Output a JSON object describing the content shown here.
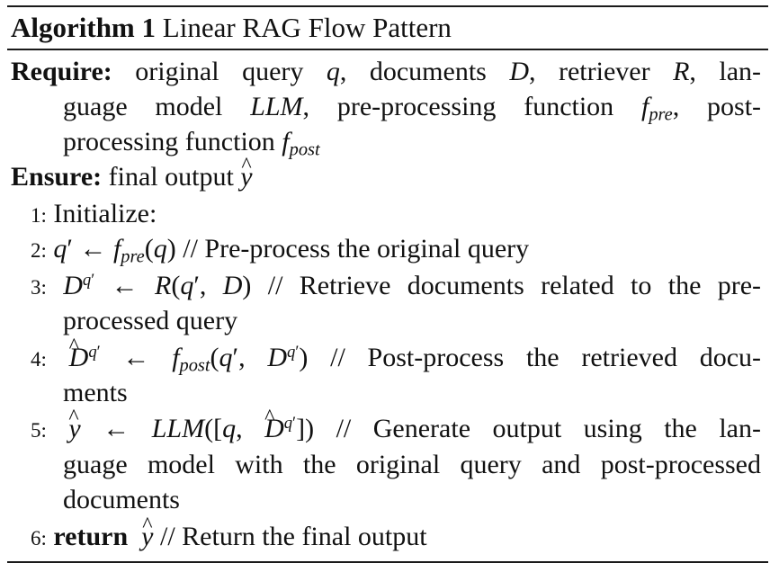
{
  "algorithm": {
    "label": "Algorithm 1",
    "name": "Linear RAG Flow Pattern"
  },
  "require": {
    "keyword": "Require:",
    "line1": {
      "text_a": "original query",
      "q": "q",
      "text_b": ", documents",
      "D": "D",
      "text_c": ", retriever",
      "R": "R",
      "text_d": ", lan-"
    },
    "line2": {
      "text_a": "guage model",
      "llm": "LLM",
      "text_b": ", pre-processing function",
      "f": "f",
      "sub": "pre",
      "text_c": ", post-"
    },
    "line3": {
      "text_a": "processing function",
      "f": "f",
      "sub": "post"
    }
  },
  "ensure": {
    "keyword": "Ensure:",
    "text": "final output",
    "y": "y"
  },
  "steps": [
    {
      "num": "1:",
      "text": "Initialize:"
    },
    {
      "num": "2:",
      "comment": "// Pre-process the original query"
    },
    {
      "num": "3:",
      "comment": "// Retrieve documents related to the pre-",
      "cont": "processed query"
    },
    {
      "num": "4:",
      "comment": "// Post-process the retrieved docu-",
      "cont": "ments"
    },
    {
      "num": "5:",
      "comment": "// Generate output using the lan-",
      "cont1": "guage model with the original query and post-processed",
      "cont2": "documents"
    },
    {
      "num": "6:",
      "keyword": "return",
      "comment": "// Return the final output"
    }
  ]
}
